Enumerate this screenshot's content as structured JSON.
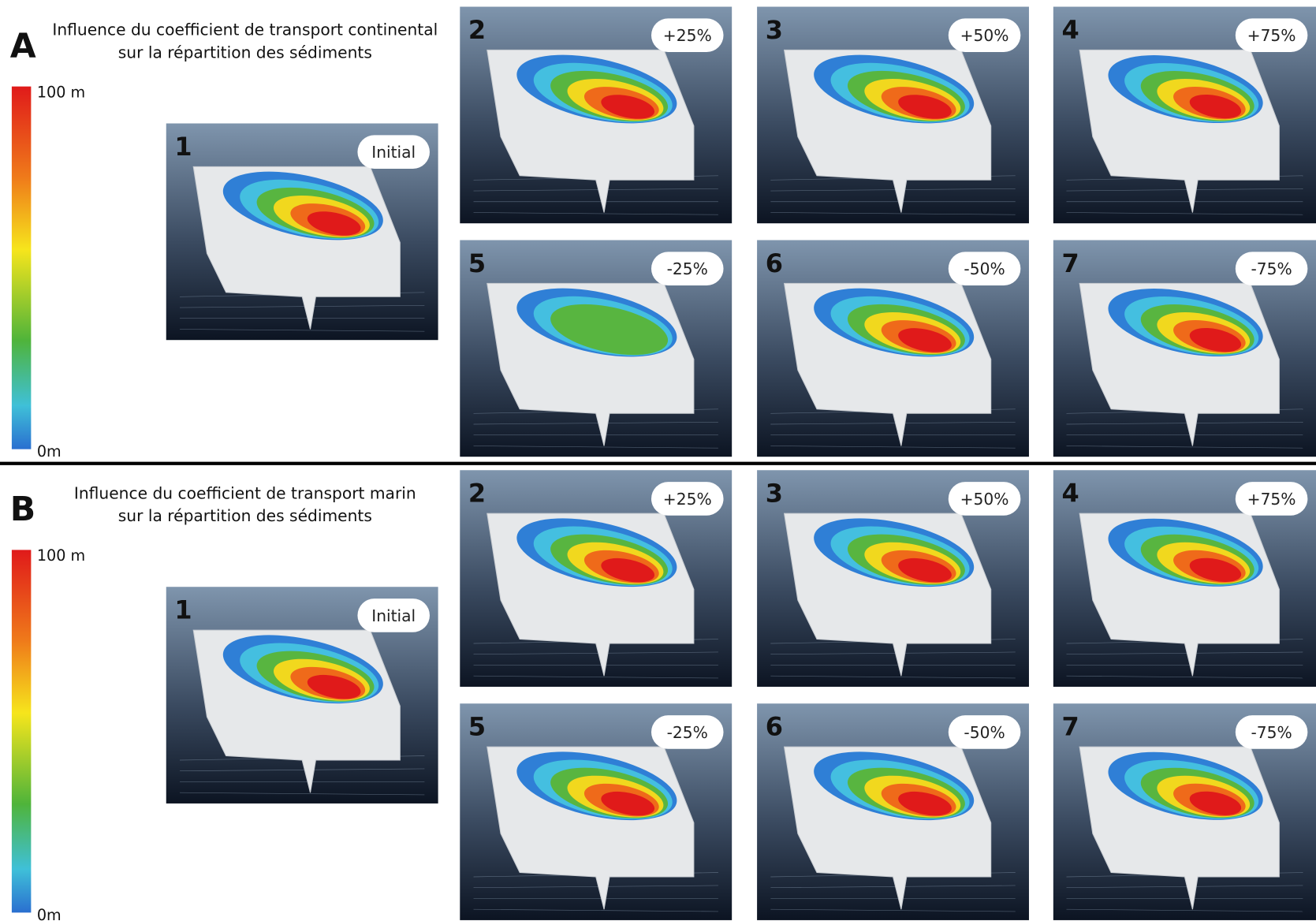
{
  "sections": [
    {
      "letter": "A",
      "title": [
        "Influence du coefficient de transport continental",
        "sur la répartition des sédiments"
      ],
      "colorbar": {
        "max": "100 m",
        "min": "0m"
      },
      "panels": [
        {
          "number": "1",
          "label": "Initial"
        },
        {
          "number": "2",
          "label": "+25%"
        },
        {
          "number": "3",
          "label": "+50%"
        },
        {
          "number": "4",
          "label": "+75%"
        },
        {
          "number": "5",
          "label": "-25%"
        },
        {
          "number": "6",
          "label": "-50%"
        },
        {
          "number": "7",
          "label": "-75%"
        }
      ]
    },
    {
      "letter": "B",
      "title": [
        "Influence du coefficient de transport marin",
        "sur la répartition des sédiments"
      ],
      "colorbar": {
        "max": "100 m",
        "min": "0m"
      },
      "panels": [
        {
          "number": "1",
          "label": "Initial"
        },
        {
          "number": "2",
          "label": "+25%"
        },
        {
          "number": "3",
          "label": "+50%"
        },
        {
          "number": "4",
          "label": "+75%"
        },
        {
          "number": "5",
          "label": "-25%"
        },
        {
          "number": "6",
          "label": "-50%"
        },
        {
          "number": "7",
          "label": "-75%"
        }
      ]
    }
  ]
}
